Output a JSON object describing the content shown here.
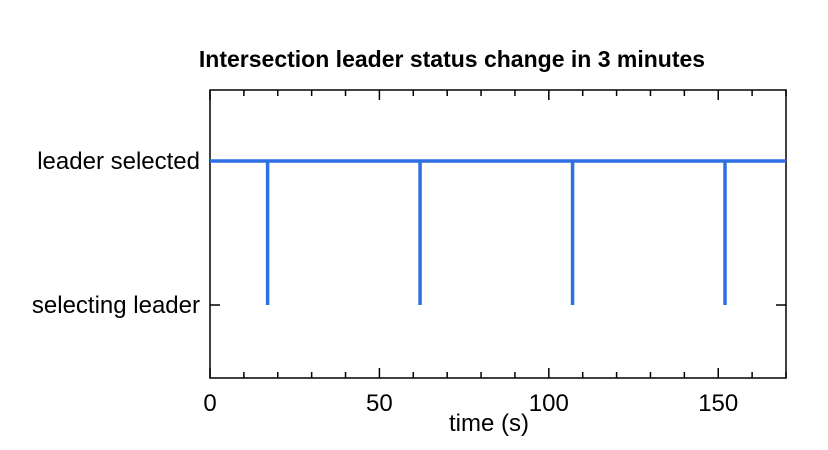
{
  "chart_data": {
    "type": "line",
    "title": "Intersection leader status change in 3 minutes",
    "xlabel": "time (s)",
    "ylabel": "",
    "xlim": [
      0,
      170
    ],
    "x_ticks": [
      0,
      50,
      100,
      150
    ],
    "y_categories": [
      "selecting leader",
      "leader selected"
    ],
    "grid": false,
    "color": "#2f6fe4",
    "series": [
      {
        "values": [
          [
            0,
            1
          ],
          [
            17,
            1
          ],
          [
            17,
            0
          ],
          [
            17,
            1
          ],
          [
            62,
            1
          ],
          [
            62,
            0
          ],
          [
            62,
            1
          ],
          [
            107,
            1
          ],
          [
            107,
            0
          ],
          [
            107,
            1
          ],
          [
            152,
            1
          ],
          [
            152,
            0
          ],
          [
            152,
            1
          ],
          [
            170,
            1
          ]
        ]
      }
    ]
  }
}
